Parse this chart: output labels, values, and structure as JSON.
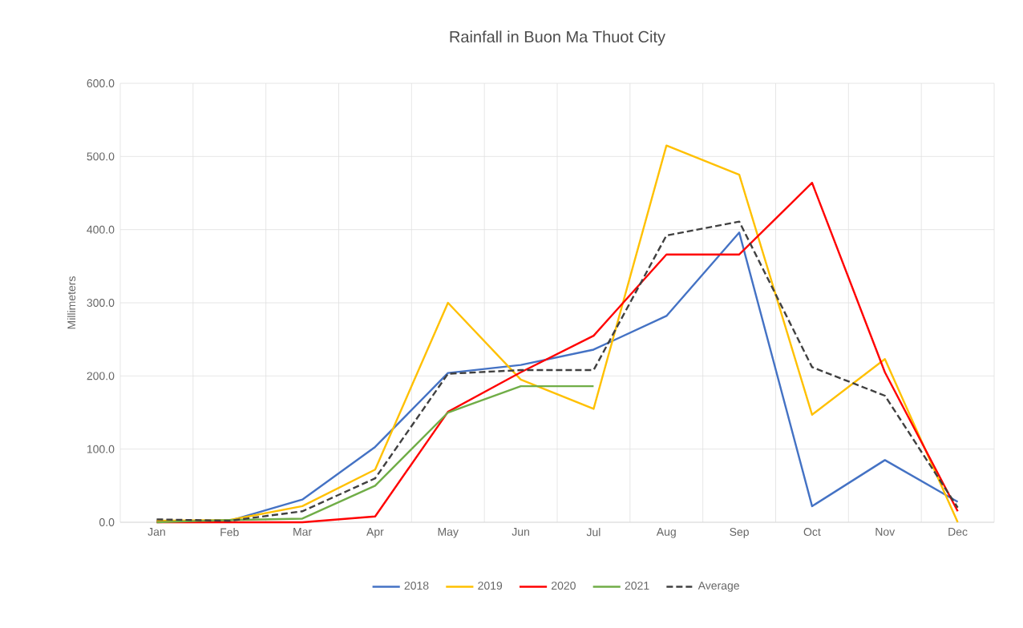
{
  "chart_data": {
    "type": "line",
    "title": "Rainfall in Buon Ma Thuot City",
    "ylabel": "Millimeters",
    "categories": [
      "Jan",
      "Feb",
      "Mar",
      "Apr",
      "May",
      "Jun",
      "Jul",
      "Aug",
      "Sep",
      "Oct",
      "Nov",
      "Dec"
    ],
    "series": [
      {
        "name": "2018",
        "color": "#4472c4",
        "values": [
          2,
          2,
          31,
          103,
          204,
          215,
          236,
          282,
          396,
          22,
          85,
          28
        ]
      },
      {
        "name": "2019",
        "color": "#ffc000",
        "values": [
          2,
          3,
          22,
          72,
          300,
          195,
          155,
          515,
          475,
          147,
          223,
          0
        ]
      },
      {
        "name": "2020",
        "color": "#ff0000",
        "values": [
          0,
          0,
          0,
          8,
          151,
          205,
          255,
          366,
          366,
          464,
          205,
          15
        ]
      },
      {
        "name": "2021",
        "color": "#70ad47",
        "values": [
          0,
          3,
          5,
          50,
          150,
          186,
          186,
          null,
          null,
          null,
          null,
          null
        ]
      },
      {
        "name": "Average",
        "color": "#404040",
        "line_style": "dashed",
        "values": [
          4,
          2,
          15,
          60,
          203,
          208,
          208,
          392,
          411,
          212,
          173,
          20
        ]
      }
    ],
    "ylim": [
      0,
      600
    ],
    "yticks": [
      {
        "value": 0,
        "label": "0.0"
      },
      {
        "value": 100,
        "label": "100.0"
      },
      {
        "value": 200,
        "label": "200.0"
      },
      {
        "value": 300,
        "label": "300.0"
      },
      {
        "value": 400,
        "label": "400.0"
      },
      {
        "value": 500,
        "label": "500.0"
      },
      {
        "value": 600,
        "label": "600.0"
      }
    ],
    "grid": true,
    "legend": "bottom",
    "marker": "none",
    "line_style": "solid"
  }
}
